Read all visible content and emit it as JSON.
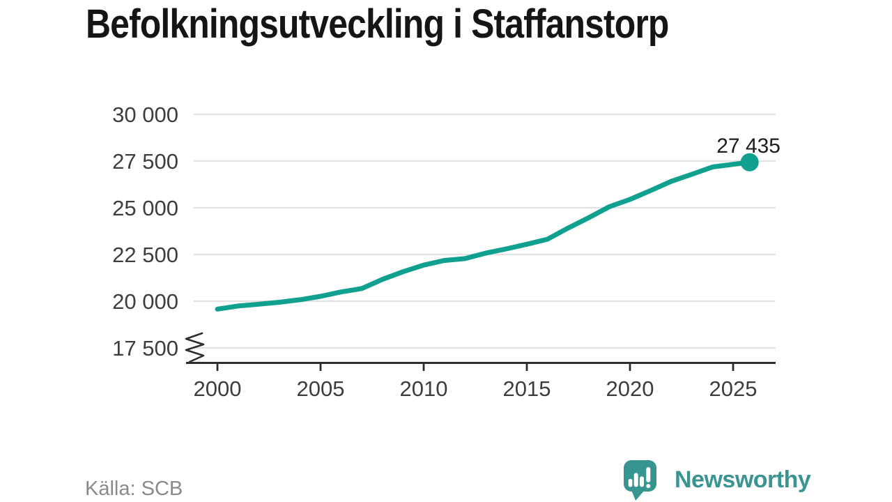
{
  "title": "Befolkningsutveckling i Staffanstorp",
  "footer": {
    "source": "Källa: SCB"
  },
  "brand": {
    "name": "Newsworthy",
    "icon": "newsworthy-speech-bubble-barchart-icon",
    "text_color": "#3a9492",
    "icon_color": "#37958f"
  },
  "colors": {
    "line": "#0fa08f",
    "marker": "#0fa08f",
    "grid": "#e2e2e2",
    "axis": "#2d2d2d",
    "tick_label": "#3d3d3d",
    "title_text": "#151515",
    "end_label": "#1c1c1c",
    "source_text": "#8a8a8a"
  },
  "chart_data": {
    "type": "line",
    "title": "Befolkningsutveckling i Staffanstorp",
    "x": [
      2000,
      2001,
      2002,
      2003,
      2004,
      2005,
      2006,
      2007,
      2008,
      2009,
      2010,
      2011,
      2012,
      2013,
      2014,
      2015,
      2016,
      2017,
      2018,
      2019,
      2020,
      2021,
      2022,
      2023,
      2024,
      2025.8
    ],
    "values": [
      19577,
      19741,
      19841,
      19945,
      20080,
      20262,
      20498,
      20680,
      21167,
      21580,
      21933,
      22178,
      22278,
      22572,
      22797,
      23048,
      23317,
      23913,
      24470,
      25057,
      25447,
      25921,
      26415,
      26792,
      27184,
      27435
    ],
    "last_point_label": "27 435",
    "yticks": [
      30000,
      27500,
      25000,
      22500,
      20000,
      17500
    ],
    "ytick_labels": [
      "30 000",
      "27 500",
      "25 000",
      "22 500",
      "20 000",
      "17 500"
    ],
    "xticks": [
      2000,
      2005,
      2010,
      2015,
      2020,
      2025
    ],
    "xtick_labels": [
      "2000",
      "2005",
      "2010",
      "2015",
      "2020",
      "2025"
    ],
    "ylim": [
      17500,
      30000
    ],
    "xlim": [
      2000,
      2027
    ],
    "grid": "horizontal",
    "y_axis_break": true,
    "legend": "none"
  }
}
